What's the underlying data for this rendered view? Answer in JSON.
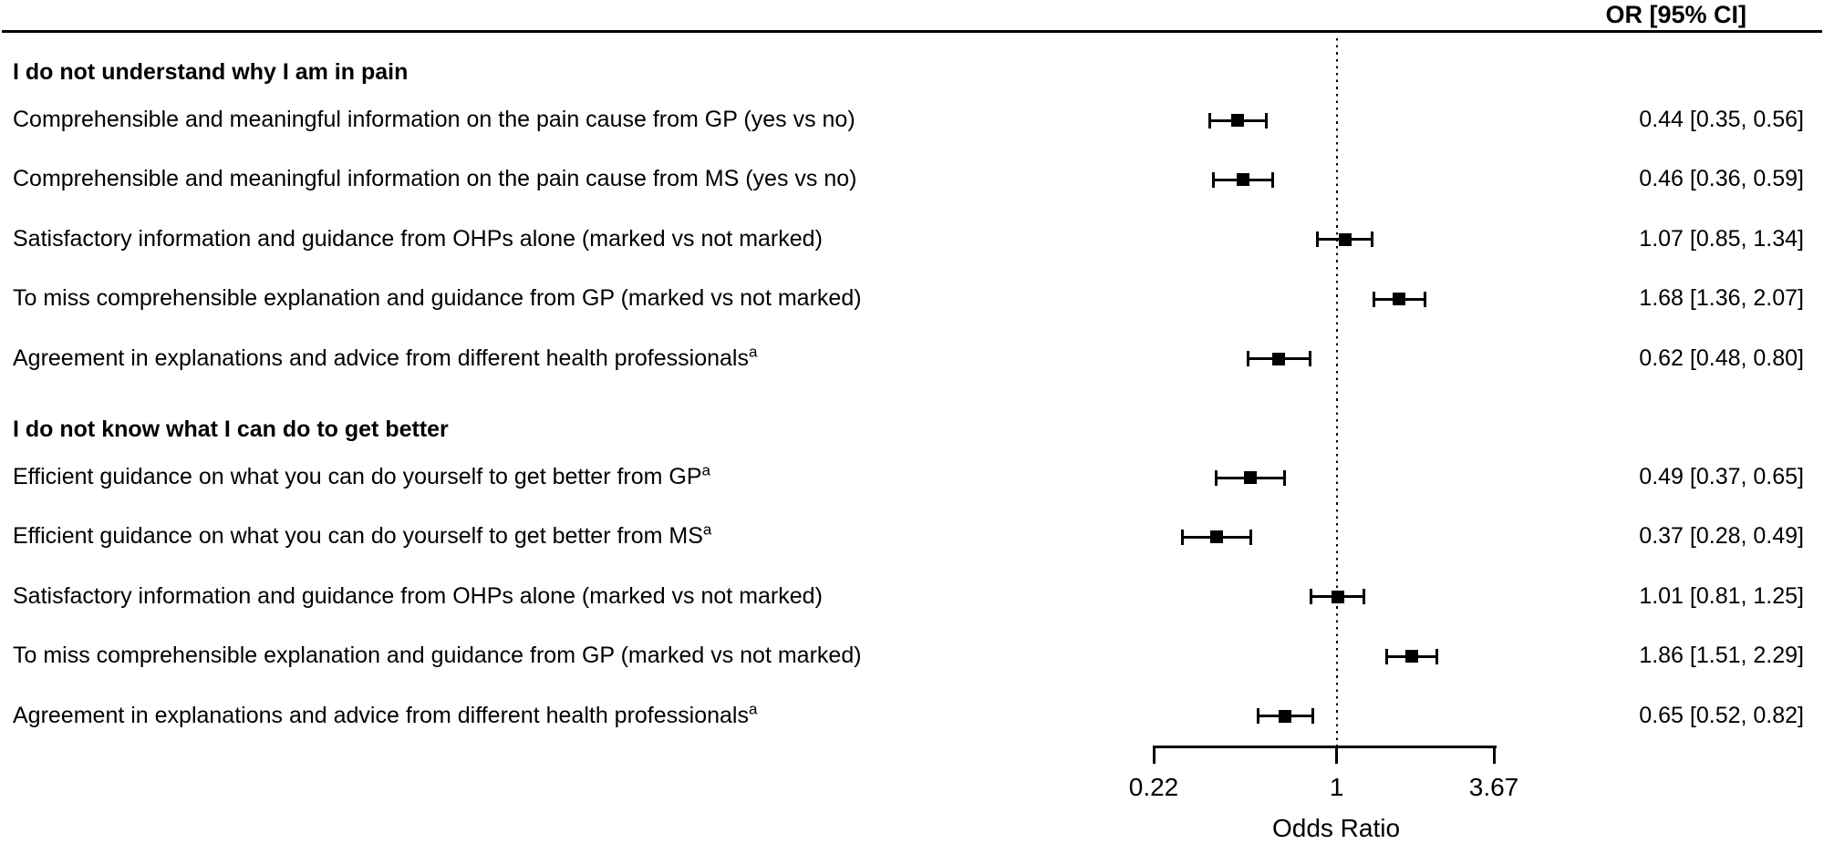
{
  "header": {
    "or_column": "OR [95% CI]"
  },
  "colors": {
    "foreground": "#000000",
    "background": "#ffffff"
  },
  "chart_data": {
    "type": "forest",
    "title": "",
    "xlabel": "Odds Ratio",
    "value_column_header": "OR [95% CI]",
    "scale": "log",
    "xlim": [
      0.22,
      3.67
    ],
    "tick_values": [
      0.22,
      1,
      3.67
    ],
    "ticks": [
      "0.22",
      "1",
      "3.67"
    ],
    "reference_line": 1,
    "footnote_marker": "a",
    "groups": [
      {
        "header": "I do not understand why I am in pain",
        "rows": [
          {
            "label": "Comprehensible and meaningful information on the pain cause from GP (yes vs no)",
            "sup": "",
            "or": 0.44,
            "ci_low": 0.35,
            "ci_high": 0.56,
            "or_label": "0.44 [0.35, 0.56]"
          },
          {
            "label": "Comprehensible and meaningful information on the pain cause from MS (yes vs no)",
            "sup": "",
            "or": 0.46,
            "ci_low": 0.36,
            "ci_high": 0.59,
            "or_label": "0.46 [0.36, 0.59]"
          },
          {
            "label": "Satisfactory information and guidance from OHPs alone (marked vs not marked)",
            "sup": "",
            "or": 1.07,
            "ci_low": 0.85,
            "ci_high": 1.34,
            "or_label": "1.07 [0.85, 1.34]"
          },
          {
            "label": "To miss comprehensible explanation and guidance from GP (marked vs not marked)",
            "sup": "",
            "or": 1.68,
            "ci_low": 1.36,
            "ci_high": 2.07,
            "or_label": "1.68 [1.36, 2.07]"
          },
          {
            "label": "Agreement in explanations and advice from different health professionals",
            "sup": "a",
            "or": 0.62,
            "ci_low": 0.48,
            "ci_high": 0.8,
            "or_label": "0.62 [0.48, 0.80]"
          }
        ]
      },
      {
        "header": "I do not know what I can do to get better",
        "rows": [
          {
            "label": "Efficient guidance on what you can do yourself to get better from GP",
            "sup": "a",
            "or": 0.49,
            "ci_low": 0.37,
            "ci_high": 0.65,
            "or_label": "0.49 [0.37, 0.65]"
          },
          {
            "label": "Efficient guidance on what you can do yourself to get better from MS",
            "sup": "a",
            "or": 0.37,
            "ci_low": 0.28,
            "ci_high": 0.49,
            "or_label": "0.37 [0.28, 0.49]"
          },
          {
            "label": "Satisfactory information and guidance from OHPs alone (marked vs not marked)",
            "sup": "",
            "or": 1.01,
            "ci_low": 0.81,
            "ci_high": 1.25,
            "or_label": "1.01 [0.81, 1.25]"
          },
          {
            "label": "To miss comprehensible explanation and guidance from GP (marked vs not marked)",
            "sup": "",
            "or": 1.86,
            "ci_low": 1.51,
            "ci_high": 2.29,
            "or_label": "1.86 [1.51, 2.29]"
          },
          {
            "label": "Agreement in explanations and advice from different health professionals",
            "sup": "a",
            "or": 0.65,
            "ci_low": 0.52,
            "ci_high": 0.82,
            "or_label": "0.65 [0.52, 0.82]"
          }
        ]
      }
    ]
  }
}
